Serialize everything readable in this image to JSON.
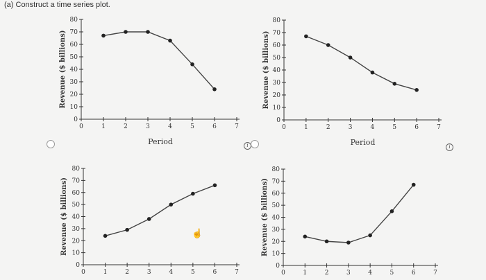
{
  "question": "(a)  Construct a time series plot.",
  "icons": {
    "radio": "radio-button",
    "info": "info-icon",
    "cursor": "hand-pointer-icon"
  },
  "chart_data": [
    {
      "type": "line",
      "xlabel": "Period",
      "ylabel": "Revenue ($ billions)",
      "xlim": [
        0,
        7
      ],
      "ylim": [
        0,
        80
      ],
      "x_ticks": [
        0,
        1,
        2,
        3,
        4,
        5,
        6,
        7
      ],
      "y_ticks": [
        0,
        10,
        20,
        30,
        40,
        50,
        60,
        70,
        80
      ],
      "x": [
        1,
        2,
        3,
        4,
        5,
        6
      ],
      "values": [
        67,
        70,
        70,
        63,
        44,
        24
      ]
    },
    {
      "type": "line",
      "xlabel": "Period",
      "ylabel": "Revenue ($ billions)",
      "xlim": [
        0,
        7
      ],
      "ylim": [
        0,
        80
      ],
      "x_ticks": [
        0,
        1,
        2,
        3,
        4,
        5,
        6,
        7
      ],
      "y_ticks": [
        0,
        10,
        20,
        30,
        40,
        50,
        60,
        70,
        80
      ],
      "x": [
        1,
        2,
        3,
        4,
        5,
        6
      ],
      "values": [
        67,
        60,
        50,
        38,
        29,
        24
      ]
    },
    {
      "type": "line",
      "xlabel": "",
      "ylabel": "Revenue ($ billions)",
      "xlim": [
        0,
        7
      ],
      "ylim": [
        0,
        80
      ],
      "x_ticks": [
        0,
        1,
        2,
        3,
        4,
        5,
        6,
        7
      ],
      "y_ticks": [
        0,
        10,
        20,
        30,
        40,
        50,
        60,
        70,
        80
      ],
      "x": [
        1,
        2,
        3,
        4,
        5,
        6
      ],
      "values": [
        24,
        29,
        38,
        50,
        59,
        66
      ]
    },
    {
      "type": "line",
      "xlabel": "",
      "ylabel": "Revenue ($ billions)",
      "xlim": [
        0,
        7
      ],
      "ylim": [
        0,
        80
      ],
      "x_ticks": [
        0,
        1,
        2,
        3,
        4,
        5,
        6,
        7
      ],
      "y_ticks": [
        0,
        10,
        20,
        30,
        40,
        50,
        60,
        70,
        80
      ],
      "x": [
        1,
        2,
        3,
        4,
        5,
        6
      ],
      "values": [
        24,
        20,
        19,
        25,
        45,
        67
      ]
    }
  ]
}
